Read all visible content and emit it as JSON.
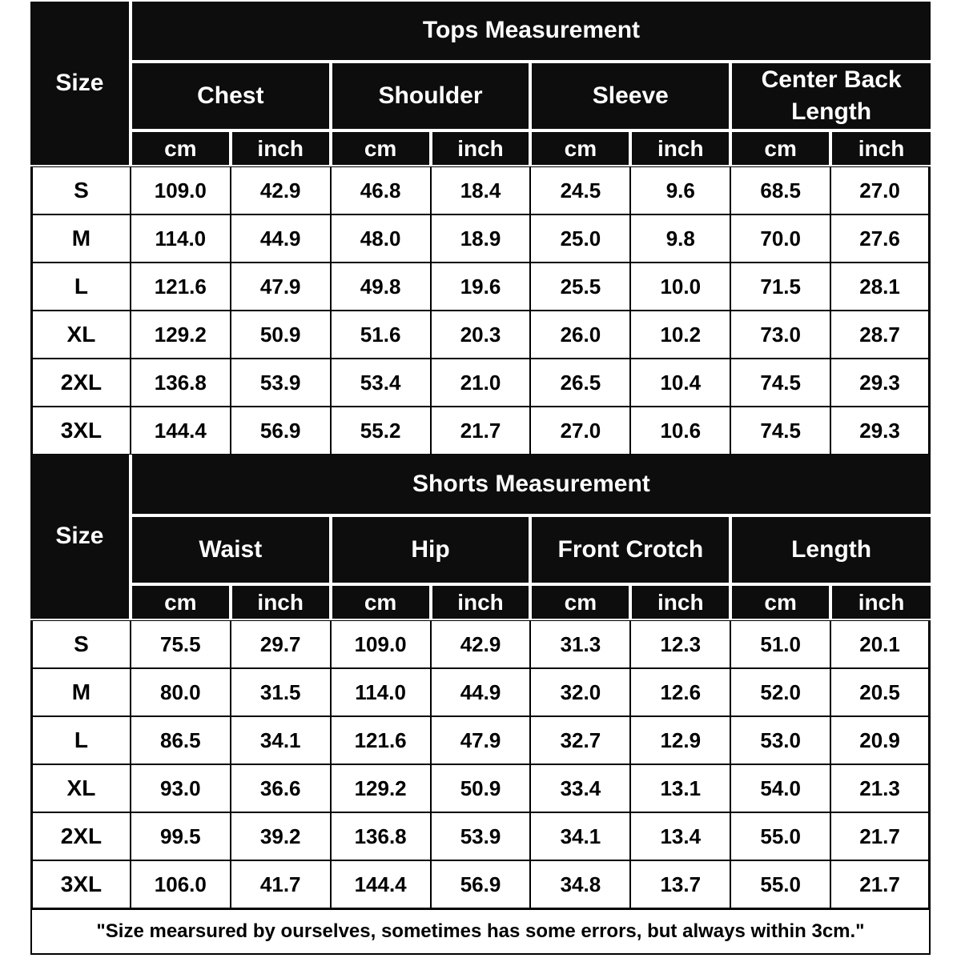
{
  "colors": {
    "header_bg": "#0d0d0d",
    "header_text": "#ffffff",
    "cell_bg": "#ffffff",
    "cell_text": "#000000",
    "grid_line": "#000000"
  },
  "chart_data": [
    {
      "type": "table",
      "title": "Tops Measurement",
      "corner_label": "Size",
      "column_groups": [
        "Chest",
        "Shoulder",
        "Sleeve",
        "Center Back Length"
      ],
      "units": [
        "cm",
        "inch",
        "cm",
        "inch",
        "cm",
        "inch",
        "cm",
        "inch"
      ],
      "rows": [
        {
          "size": "S",
          "values": [
            "109.0",
            "42.9",
            "46.8",
            "18.4",
            "24.5",
            "9.6",
            "68.5",
            "27.0"
          ]
        },
        {
          "size": "M",
          "values": [
            "114.0",
            "44.9",
            "48.0",
            "18.9",
            "25.0",
            "9.8",
            "70.0",
            "27.6"
          ]
        },
        {
          "size": "L",
          "values": [
            "121.6",
            "47.9",
            "49.8",
            "19.6",
            "25.5",
            "10.0",
            "71.5",
            "28.1"
          ]
        },
        {
          "size": "XL",
          "values": [
            "129.2",
            "50.9",
            "51.6",
            "20.3",
            "26.0",
            "10.2",
            "73.0",
            "28.7"
          ]
        },
        {
          "size": "2XL",
          "values": [
            "136.8",
            "53.9",
            "53.4",
            "21.0",
            "26.5",
            "10.4",
            "74.5",
            "29.3"
          ]
        },
        {
          "size": "3XL",
          "values": [
            "144.4",
            "56.9",
            "55.2",
            "21.7",
            "27.0",
            "10.6",
            "74.5",
            "29.3"
          ]
        }
      ]
    },
    {
      "type": "table",
      "title": "Shorts Measurement",
      "corner_label": "Size",
      "column_groups": [
        "Waist",
        "Hip",
        "Front Crotch",
        "Length"
      ],
      "units": [
        "cm",
        "inch",
        "cm",
        "inch",
        "cm",
        "inch",
        "cm",
        "inch"
      ],
      "rows": [
        {
          "size": "S",
          "values": [
            "75.5",
            "29.7",
            "109.0",
            "42.9",
            "31.3",
            "12.3",
            "51.0",
            "20.1"
          ]
        },
        {
          "size": "M",
          "values": [
            "80.0",
            "31.5",
            "114.0",
            "44.9",
            "32.0",
            "12.6",
            "52.0",
            "20.5"
          ]
        },
        {
          "size": "L",
          "values": [
            "86.5",
            "34.1",
            "121.6",
            "47.9",
            "32.7",
            "12.9",
            "53.0",
            "20.9"
          ]
        },
        {
          "size": "XL",
          "values": [
            "93.0",
            "36.6",
            "129.2",
            "50.9",
            "33.4",
            "13.1",
            "54.0",
            "21.3"
          ]
        },
        {
          "size": "2XL",
          "values": [
            "99.5",
            "39.2",
            "136.8",
            "53.9",
            "34.1",
            "13.4",
            "55.0",
            "21.7"
          ]
        },
        {
          "size": "3XL",
          "values": [
            "106.0",
            "41.7",
            "144.4",
            "56.9",
            "34.8",
            "13.7",
            "55.0",
            "21.7"
          ]
        }
      ]
    }
  ],
  "footer_note": "\"Size mearsured by ourselves, sometimes has some errors, but always within 3cm.\""
}
